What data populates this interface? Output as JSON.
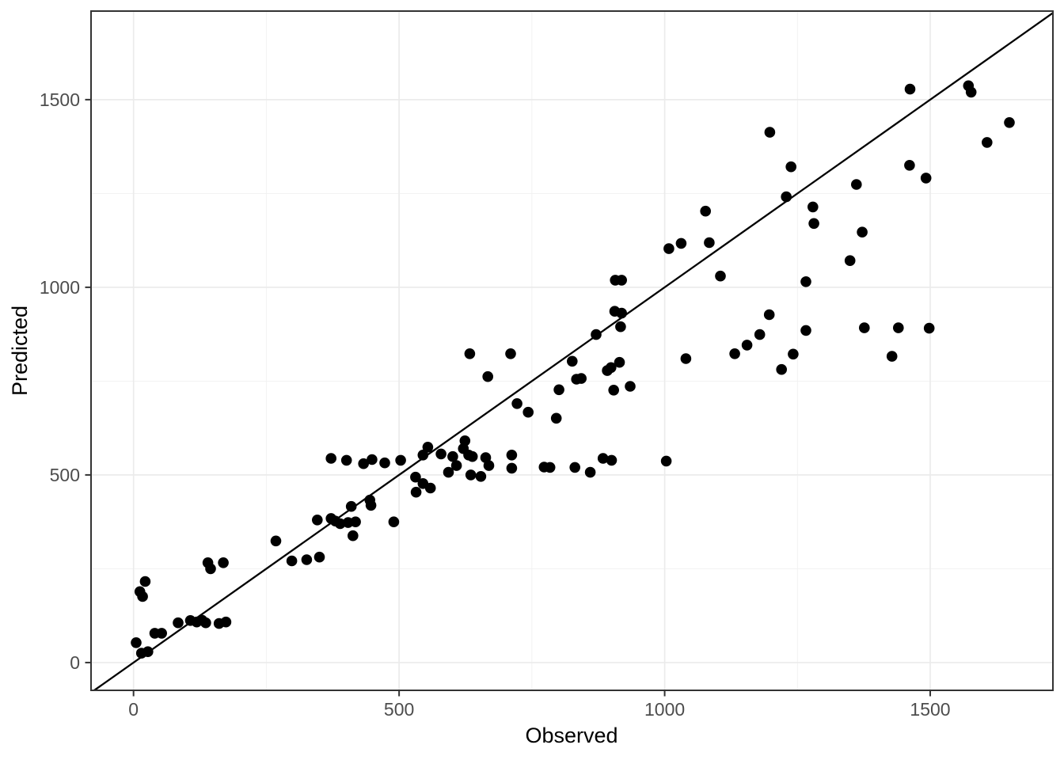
{
  "chart_data": {
    "type": "scatter",
    "title": "",
    "xlabel": "Observed",
    "ylabel": "Predicted",
    "xlim": [
      -80,
      1731
    ],
    "ylim": [
      -74,
      1736
    ],
    "x_ticks": [
      0,
      500,
      1000,
      1500
    ],
    "y_ticks": [
      0,
      500,
      1000,
      1500
    ],
    "x_minor_ticks": [
      250,
      750,
      1250
    ],
    "y_minor_ticks": [
      250,
      750,
      1250
    ],
    "grid": true,
    "legend": "none",
    "reference_line": {
      "name": "identity-line",
      "slope": 1,
      "intercept": 0
    },
    "point_radius_px": 6.8,
    "colors": {
      "point": "#000000",
      "line": "#000000",
      "grid_major": "#ebebeb",
      "grid_minor": "#f1f1f1",
      "panel_border": "#333333",
      "tick_mark": "#333333",
      "tick_label": "#4d4d4d",
      "axis_title": "#000000",
      "background": "#ffffff"
    },
    "points": [
      [
        5,
        53
      ],
      [
        15,
        25
      ],
      [
        27,
        29
      ],
      [
        22,
        216
      ],
      [
        12,
        189
      ],
      [
        17,
        176
      ],
      [
        40,
        78
      ],
      [
        53,
        78
      ],
      [
        84,
        106
      ],
      [
        107,
        112
      ],
      [
        119,
        108
      ],
      [
        129,
        113
      ],
      [
        136,
        106
      ],
      [
        161,
        104
      ],
      [
        174,
        108
      ],
      [
        140,
        266
      ],
      [
        145,
        250
      ],
      [
        169,
        266
      ],
      [
        268,
        324
      ],
      [
        298,
        271
      ],
      [
        326,
        274
      ],
      [
        350,
        281
      ],
      [
        346,
        380
      ],
      [
        372,
        384
      ],
      [
        380,
        377
      ],
      [
        389,
        370
      ],
      [
        404,
        373
      ],
      [
        418,
        375
      ],
      [
        413,
        338
      ],
      [
        410,
        416
      ],
      [
        445,
        433
      ],
      [
        447,
        419
      ],
      [
        490,
        375
      ],
      [
        531,
        494
      ],
      [
        532,
        454
      ],
      [
        545,
        477
      ],
      [
        559,
        465
      ],
      [
        372,
        544
      ],
      [
        401,
        539
      ],
      [
        433,
        530
      ],
      [
        449,
        541
      ],
      [
        473,
        532
      ],
      [
        503,
        539
      ],
      [
        545,
        553
      ],
      [
        554,
        574
      ],
      [
        579,
        556
      ],
      [
        593,
        507
      ],
      [
        601,
        549
      ],
      [
        608,
        525
      ],
      [
        621,
        570
      ],
      [
        624,
        591
      ],
      [
        631,
        553
      ],
      [
        638,
        549
      ],
      [
        635,
        500
      ],
      [
        654,
        496
      ],
      [
        663,
        546
      ],
      [
        669,
        525
      ],
      [
        712,
        553
      ],
      [
        712,
        518
      ],
      [
        773,
        521
      ],
      [
        784,
        520
      ],
      [
        831,
        520
      ],
      [
        860,
        507
      ],
      [
        884,
        544
      ],
      [
        900,
        539
      ],
      [
        1003,
        537
      ],
      [
        633,
        823
      ],
      [
        710,
        823
      ],
      [
        667,
        762
      ],
      [
        722,
        690
      ],
      [
        743,
        667
      ],
      [
        796,
        651
      ],
      [
        801,
        727
      ],
      [
        826,
        803
      ],
      [
        834,
        755
      ],
      [
        843,
        757
      ],
      [
        871,
        874
      ],
      [
        892,
        778
      ],
      [
        899,
        786
      ],
      [
        915,
        800
      ],
      [
        904,
        726
      ],
      [
        935,
        736
      ],
      [
        917,
        895
      ],
      [
        907,
        1019
      ],
      [
        919,
        1019
      ],
      [
        906,
        936
      ],
      [
        919,
        931
      ],
      [
        1008,
        1103
      ],
      [
        1031,
        1117
      ],
      [
        1084,
        1119
      ],
      [
        1077,
        1203
      ],
      [
        1105,
        1030
      ],
      [
        1040,
        810
      ],
      [
        1132,
        823
      ],
      [
        1155,
        846
      ],
      [
        1179,
        874
      ],
      [
        1197,
        927
      ],
      [
        1220,
        781
      ],
      [
        1242,
        822
      ],
      [
        1428,
        816
      ],
      [
        1266,
        885
      ],
      [
        1376,
        892
      ],
      [
        1440,
        892
      ],
      [
        1498,
        891
      ],
      [
        1266,
        1015
      ],
      [
        1279,
        1214
      ],
      [
        1281,
        1170
      ],
      [
        1349,
        1071
      ],
      [
        1372,
        1147
      ],
      [
        1198,
        1413
      ],
      [
        1238,
        1321
      ],
      [
        1229,
        1241
      ],
      [
        1361,
        1274
      ],
      [
        1461,
        1325
      ],
      [
        1492,
        1291
      ],
      [
        1462,
        1528
      ],
      [
        1572,
        1537
      ],
      [
        1577,
        1520
      ],
      [
        1607,
        1386
      ],
      [
        1649,
        1439
      ]
    ]
  }
}
